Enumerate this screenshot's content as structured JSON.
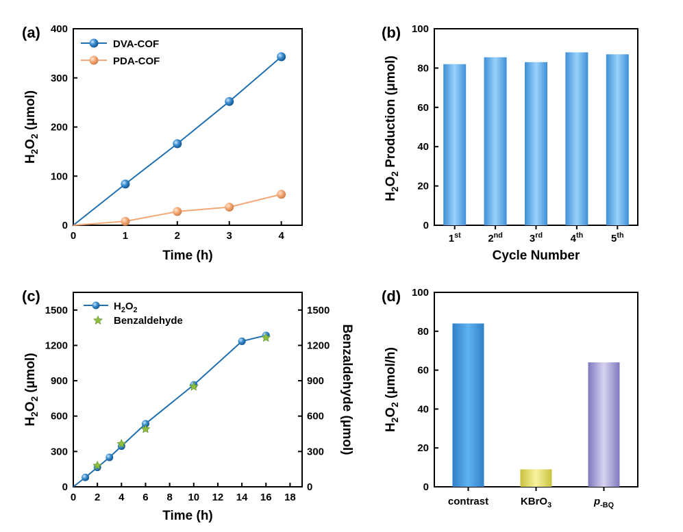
{
  "chart_data": [
    {
      "panel": "(a)",
      "type": "line",
      "xlabel": "Time (h)",
      "ylabel": "H2O2 (μmol)",
      "ylabel_parts": [
        "H",
        "2",
        "O",
        "2",
        " (μmol)"
      ],
      "x_ticks": [
        "0",
        "1",
        "2",
        "3",
        "4"
      ],
      "y_ticks": [
        "0",
        "100",
        "200",
        "300",
        "400"
      ],
      "xlim": [
        0,
        4.4
      ],
      "ylim": [
        0,
        400
      ],
      "legend_position": "top-left",
      "series": [
        {
          "name": "DVA-COF",
          "color": "#1f6fb0",
          "x": [
            0,
            1,
            2,
            3,
            4
          ],
          "y": [
            0,
            84,
            166,
            252,
            343
          ]
        },
        {
          "name": "PDA-COF",
          "color": "#f4a772",
          "x": [
            0,
            1,
            2,
            3,
            4
          ],
          "y": [
            0,
            8,
            28,
            37,
            63
          ]
        }
      ]
    },
    {
      "panel": "(b)",
      "type": "bar",
      "xlabel": "Cycle Number",
      "ylabel": "H2O2 Production (μmol)",
      "ylabel_parts": [
        "H",
        "2",
        "O",
        "2",
        " Production (μmol)"
      ],
      "categories": [
        [
          "1",
          "st"
        ],
        [
          "2",
          "nd"
        ],
        [
          "3",
          "rd"
        ],
        [
          "4",
          "th"
        ],
        [
          "5",
          "th"
        ]
      ],
      "values": [
        82,
        85.5,
        83,
        88,
        87
      ],
      "y_ticks": [
        "0",
        "20",
        "40",
        "60",
        "80",
        "100"
      ],
      "ylim": [
        0,
        100
      ],
      "bar_color": "#62b4ec"
    },
    {
      "panel": "(c)",
      "type": "line",
      "xlabel": "Time (h)",
      "ylabel": "H2O2 (μmol)",
      "ylabel_parts": [
        "H",
        "2",
        "O",
        "2",
        " (μmol)"
      ],
      "ylabel_right": "Benzaldehyde (μmol)",
      "x_ticks": [
        "0",
        "2",
        "4",
        "6",
        "8",
        "10",
        "12",
        "14",
        "16",
        "18"
      ],
      "y_ticks": [
        "0",
        "300",
        "600",
        "900",
        "1200",
        "1500"
      ],
      "xlim": [
        0,
        19
      ],
      "ylim": [
        0,
        1650
      ],
      "legend_position": "top-left",
      "series": [
        {
          "name": "H2O2",
          "name_parts": [
            "H",
            "2",
            "O",
            "2"
          ],
          "color": "#1f6fb0",
          "marker": "circle",
          "x": [
            0,
            1,
            2,
            3,
            4,
            6,
            10,
            14,
            16
          ],
          "y": [
            0,
            80,
            165,
            250,
            345,
            535,
            865,
            1235,
            1285
          ]
        },
        {
          "name": "Benzaldehyde",
          "color": "#8cbf3f",
          "marker": "star",
          "x": [
            2,
            4,
            6,
            10,
            16
          ],
          "y": [
            180,
            365,
            490,
            850,
            1265
          ]
        }
      ]
    },
    {
      "panel": "(d)",
      "type": "bar",
      "xlabel": "",
      "ylabel": "H2O2 (μmol/h)",
      "ylabel_parts": [
        "H",
        "2",
        "O",
        "2",
        " (μmol/h)"
      ],
      "categories": [
        "contrast",
        "KBrO3",
        "p-BQ"
      ],
      "category_parts": [
        [
          "contrast"
        ],
        [
          "KBrO",
          "3"
        ],
        [
          "p",
          "-BQ"
        ]
      ],
      "values": [
        84,
        9,
        64
      ],
      "y_ticks": [
        "0",
        "20",
        "40",
        "60",
        "80",
        "100"
      ],
      "ylim": [
        0,
        100
      ],
      "bar_colors": [
        "#3f9be0",
        "#e8e070",
        "#b4b0dc"
      ]
    }
  ]
}
